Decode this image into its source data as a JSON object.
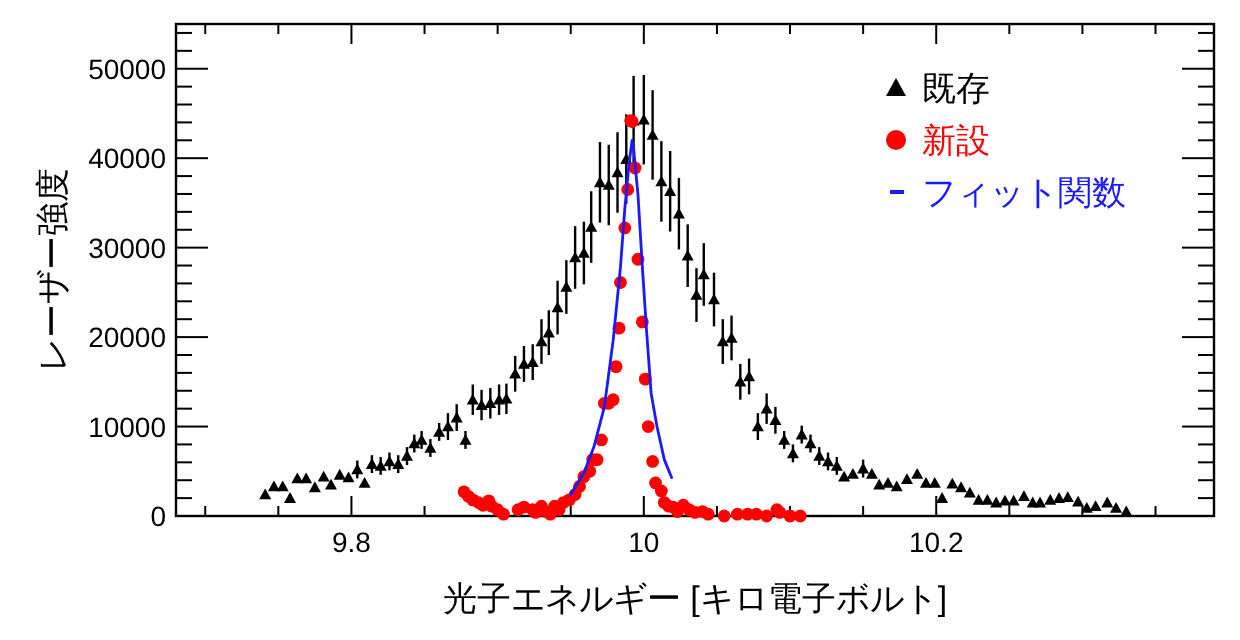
{
  "chart_data": {
    "type": "scatter",
    "xlabel": "光子エネルギー [キロ電子ボルト]",
    "ylabel": "レーザー強度",
    "xlim": [
      9.68,
      10.39
    ],
    "ylim": [
      0,
      55000
    ],
    "xticks": [
      {
        "value": 9.7,
        "label": null
      },
      {
        "value": 9.75,
        "label": null
      },
      {
        "value": 9.8,
        "label": "9.8"
      },
      {
        "value": 9.85,
        "label": null
      },
      {
        "value": 9.9,
        "label": null
      },
      {
        "value": 9.95,
        "label": null
      },
      10,
      {
        "value": 10.05,
        "label": null
      },
      {
        "value": 10.1,
        "label": null
      },
      {
        "value": 10.15,
        "label": null
      },
      {
        "value": 10.2,
        "label": "10.2"
      },
      {
        "value": 10.25,
        "label": null
      },
      {
        "value": 10.3,
        "label": null
      },
      {
        "value": 10.35,
        "label": null
      }
    ],
    "yticks": [
      0,
      {
        "value": 2000,
        "label": null
      },
      {
        "value": 4000,
        "label": null
      },
      {
        "value": 6000,
        "label": null
      },
      {
        "value": 8000,
        "label": null
      },
      10000,
      {
        "value": 12000,
        "label": null
      },
      {
        "value": 14000,
        "label": null
      },
      {
        "value": 16000,
        "label": null
      },
      {
        "value": 18000,
        "label": null
      },
      20000,
      {
        "value": 22000,
        "label": null
      },
      {
        "value": 24000,
        "label": null
      },
      {
        "value": 26000,
        "label": null
      },
      {
        "value": 28000,
        "label": null
      },
      30000,
      {
        "value": 32000,
        "label": null
      },
      {
        "value": 34000,
        "label": null
      },
      {
        "value": 36000,
        "label": null
      },
      {
        "value": 38000,
        "label": null
      },
      40000,
      {
        "value": 42000,
        "label": null
      },
      {
        "value": 44000,
        "label": null
      },
      {
        "value": 46000,
        "label": null
      },
      {
        "value": 48000,
        "label": null
      },
      50000,
      {
        "value": 52000,
        "label": null
      },
      {
        "value": 54000,
        "label": null
      }
    ],
    "legend": "top right",
    "series": [
      {
        "name": "既存",
        "marker": "triangle",
        "color": "#000000",
        "x": [
          9.741,
          9.747,
          9.753,
          9.758,
          9.763,
          9.769,
          9.775,
          9.781,
          9.786,
          9.792,
          9.798,
          9.804,
          9.809,
          9.814,
          9.82,
          9.826,
          9.832,
          9.838,
          9.843,
          9.848,
          9.854,
          9.86,
          9.866,
          9.872,
          9.878,
          9.883,
          9.889,
          9.895,
          9.901,
          9.906,
          9.912,
          9.918,
          9.924,
          9.93,
          9.935,
          9.941,
          9.947,
          9.953,
          9.959,
          9.964,
          9.97,
          9.976,
          9.982,
          9.988,
          9.993,
          10.0,
          10.006,
          10.012,
          10.018,
          10.024,
          10.03,
          10.036,
          10.041,
          10.048,
          10.054,
          10.06,
          10.066,
          10.072,
          10.078,
          10.084,
          10.09,
          10.096,
          10.102,
          10.108,
          10.114,
          10.12,
          10.126,
          10.132,
          10.137,
          10.143,
          10.15,
          10.156,
          10.161,
          10.167,
          10.173,
          10.18,
          10.187,
          10.193,
          10.199,
          10.204,
          10.211,
          10.217,
          10.223,
          10.229,
          10.235,
          10.241,
          10.247,
          10.253,
          10.26,
          10.266,
          10.271,
          10.278,
          10.284,
          10.29,
          10.297,
          10.303,
          10.309,
          10.317,
          10.323,
          10.33
        ],
        "values": [
          2400,
          3300,
          3300,
          2000,
          4200,
          4200,
          3200,
          4400,
          3500,
          4600,
          4300,
          5200,
          3700,
          5800,
          5600,
          6100,
          5800,
          6700,
          8100,
          8500,
          7600,
          9400,
          10000,
          11000,
          8500,
          13000,
          12400,
          12600,
          13000,
          13100,
          15900,
          17000,
          17200,
          19500,
          20500,
          23300,
          25600,
          28900,
          29400,
          32300,
          37300,
          37000,
          38400,
          39900,
          44200,
          44300,
          42600,
          37400,
          36300,
          33800,
          29100,
          24700,
          27000,
          24200,
          19500,
          19900,
          15000,
          15600,
          10000,
          12000,
          10700,
          8500,
          7000,
          9100,
          8100,
          6700,
          6100,
          5600,
          4400,
          4700,
          5300,
          4700,
          3500,
          3700,
          3300,
          4100,
          4700,
          3700,
          3700,
          2000,
          3600,
          3200,
          2600,
          1800,
          1800,
          1500,
          1700,
          1700,
          2200,
          1500,
          1500,
          1800,
          2000,
          2100,
          1600,
          900,
          1100,
          1500,
          900,
          500
        ],
        "errors": [
          400,
          400,
          400,
          400,
          400,
          400,
          400,
          400,
          400,
          400,
          400,
          1000,
          400,
          1000,
          1000,
          1000,
          1000,
          1000,
          1000,
          1000,
          1000,
          1000,
          1500,
          1500,
          1000,
          1700,
          1700,
          1700,
          1700,
          1700,
          2000,
          2000,
          2000,
          2500,
          2500,
          3000,
          3000,
          3500,
          3500,
          4000,
          4500,
          4500,
          4500,
          5000,
          5000,
          5000,
          5000,
          4500,
          4500,
          4000,
          3500,
          3000,
          3500,
          3000,
          2500,
          2500,
          2000,
          2000,
          1500,
          1700,
          1500,
          1000,
          1000,
          1000,
          1000,
          1000,
          1000,
          1000,
          400,
          400,
          1000,
          400,
          400,
          400,
          400,
          400,
          400,
          400,
          400,
          400,
          400,
          400,
          400,
          400,
          400,
          400,
          400,
          400,
          400,
          400,
          400,
          400,
          400,
          400,
          400,
          400,
          400,
          400,
          400,
          null
        ]
      },
      {
        "name": "新設",
        "marker": "circle",
        "color": "#ff0000",
        "x": [
          9.877,
          9.88,
          9.883,
          9.887,
          9.89,
          9.894,
          9.896,
          9.9,
          9.904,
          9.914,
          9.918,
          9.924,
          9.926,
          9.93,
          9.933,
          9.936,
          9.939,
          9.942,
          9.945,
          9.949,
          9.953,
          9.956,
          9.959,
          9.963,
          9.965,
          9.968,
          9.971,
          9.973,
          9.976,
          9.979,
          9.981,
          9.983,
          9.984,
          9.987,
          9.989,
          9.991,
          9.992,
          9.994,
          9.996,
          9.999,
          10.001,
          10.003,
          10.006,
          10.008,
          10.012,
          10.014,
          10.017,
          10.02,
          10.023,
          10.027,
          10.031,
          10.035,
          10.04,
          10.044,
          10.055,
          10.064,
          10.071,
          10.077,
          10.084,
          10.091,
          10.093,
          10.1,
          10.107
        ],
        "values": [
          2700,
          2200,
          1800,
          1500,
          1200,
          1700,
          1100,
          700,
          200,
          700,
          1000,
          700,
          400,
          1100,
          500,
          200,
          1100,
          700,
          1500,
          1800,
          2400,
          3300,
          4400,
          5000,
          6300,
          6300,
          8500,
          12600,
          12600,
          13000,
          16700,
          21000,
          26100,
          32200,
          36500,
          44200,
          44100,
          38900,
          28700,
          21700,
          15300,
          10000,
          6100,
          3700,
          2800,
          1500,
          1100,
          1000,
          500,
          1200,
          700,
          400,
          500,
          200,
          0,
          200,
          200,
          200,
          0,
          700,
          400,
          0,
          0
        ]
      },
      {
        "name": "フィット関数",
        "type": "line",
        "marker": "none",
        "color": "#1a1aff",
        "x": [
          9.95,
          9.959,
          9.966,
          9.973,
          9.979,
          9.984,
          9.987,
          9.99,
          9.992,
          9.993,
          9.996,
          9.999,
          10.002,
          10.005,
          10.009,
          10.014,
          10.019
        ],
        "values": [
          2400,
          4800,
          7800,
          12200,
          19600,
          27800,
          34400,
          39600,
          42000,
          41100,
          35900,
          27800,
          20400,
          13700,
          10000,
          6300,
          4300
        ]
      }
    ]
  }
}
